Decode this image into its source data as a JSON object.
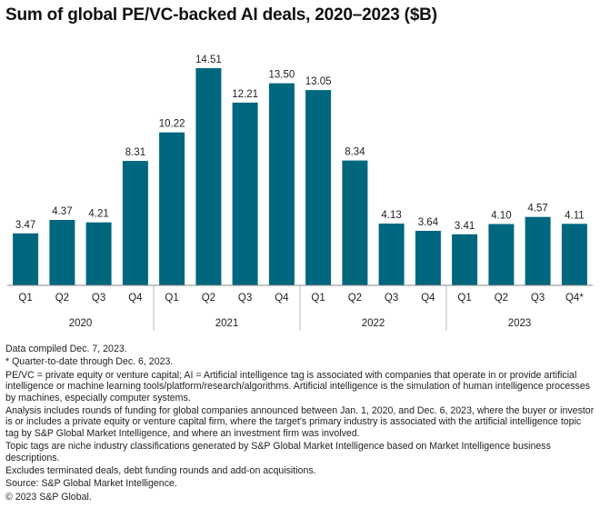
{
  "title": "Sum of global PE/VC-backed AI deals, 2020–2023 ($B)",
  "colors": {
    "bar": "#00677f",
    "axis": "#888888",
    "text": "#222222"
  },
  "chart_data": {
    "type": "bar",
    "title": "Sum of global PE/VC-backed AI deals, 2020–2023 ($B)",
    "categories": [
      "Q1",
      "Q2",
      "Q3",
      "Q4",
      "Q1",
      "Q2",
      "Q3",
      "Q4",
      "Q1",
      "Q2",
      "Q3",
      "Q4",
      "Q1",
      "Q2",
      "Q3",
      "Q4*"
    ],
    "groups": [
      {
        "label": "2020",
        "count": 4
      },
      {
        "label": "2021",
        "count": 4
      },
      {
        "label": "2022",
        "count": 4
      },
      {
        "label": "2023",
        "count": 4
      }
    ],
    "values": [
      3.47,
      4.37,
      4.21,
      8.31,
      10.22,
      14.51,
      12.21,
      13.5,
      13.05,
      8.34,
      4.13,
      3.64,
      3.41,
      4.1,
      4.57,
      4.11
    ],
    "value_labels": [
      "3.47",
      "4.37",
      "4.21",
      "8.31",
      "10.22",
      "14.51",
      "12.21",
      "13.50",
      "13.05",
      "8.34",
      "4.13",
      "3.64",
      "3.41",
      "4.10",
      "4.57",
      "4.11"
    ],
    "ylim": [
      0,
      15.3
    ],
    "grid": false,
    "legend": "none"
  },
  "notes": [
    "Data compiled Dec. 7, 2023.",
    "* Quarter-to-date through Dec. 6, 2023.",
    "PE/VC = private equity or venture capital; AI = Artificial intelligence tag is associated with companies that operate in or provide artificial intelligence or machine learning tools/platform/research/algorithms. Artificial intelligence is the simulation of human intelligence processes by machines, especially computer systems.",
    "Analysis includes rounds of funding for global companies announced between Jan. 1, 2020, and Dec. 6, 2023, where the buyer or investor is or includes a private equity or venture capital firm, where the target's primary industry is associated with the artificial intelligence topic tag by S&P Global Market Intelligence, and where an investment firm was involved.",
    "Topic tags are niche industry classifications generated by S&P Global Market Intelligence based on Market Intelligence business descriptions.",
    "Excludes terminated deals, debt funding rounds and add-on acquisitions.",
    "Source: S&P Global Market Intelligence.",
    "© 2023 S&P Global."
  ]
}
